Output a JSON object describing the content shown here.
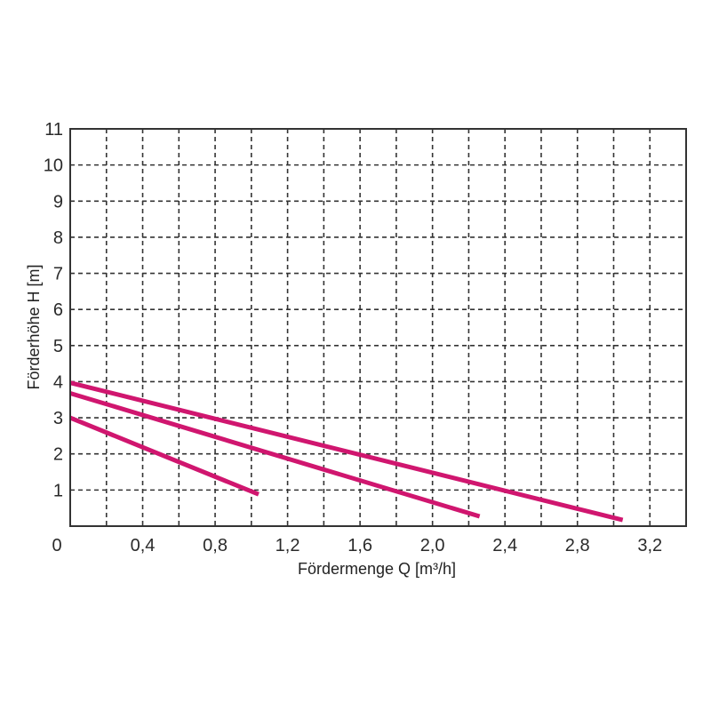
{
  "chart_data": {
    "type": "line",
    "xlabel": "Fördermenge Q [m³/h]",
    "ylabel": "Förderhöhe H [m]",
    "xlim": [
      0,
      3.4
    ],
    "ylim": [
      0,
      11
    ],
    "x_ticks": [
      0,
      0.2,
      0.4,
      0.6,
      0.8,
      1.0,
      1.2,
      1.4,
      1.6,
      1.8,
      2.0,
      2.2,
      2.4,
      2.6,
      2.8,
      3.0,
      3.2,
      3.4
    ],
    "x_tick_labels": [
      {
        "value": 0,
        "label": "0"
      },
      {
        "value": 0.4,
        "label": "0,4"
      },
      {
        "value": 0.8,
        "label": "0,8"
      },
      {
        "value": 1.2,
        "label": "1,2"
      },
      {
        "value": 1.6,
        "label": "1,6"
      },
      {
        "value": 2.0,
        "label": "2,0"
      },
      {
        "value": 2.4,
        "label": "2,4"
      },
      {
        "value": 2.8,
        "label": "2,8"
      },
      {
        "value": 3.2,
        "label": "3,2"
      }
    ],
    "y_tick_labels": [
      {
        "value": 1,
        "label": "1"
      },
      {
        "value": 2,
        "label": "2"
      },
      {
        "value": 3,
        "label": "3"
      },
      {
        "value": 4,
        "label": "4"
      },
      {
        "value": 5,
        "label": "5"
      },
      {
        "value": 6,
        "label": "6"
      },
      {
        "value": 7,
        "label": "7"
      },
      {
        "value": 8,
        "label": "8"
      },
      {
        "value": 9,
        "label": "9"
      },
      {
        "value": 10,
        "label": "10"
      },
      {
        "value": 11,
        "label": "11"
      }
    ],
    "grid": true,
    "series": [
      {
        "x": [
          0,
          3.05
        ],
        "y": [
          3.97,
          0.17
        ],
        "color": "#d0166f"
      },
      {
        "x": [
          0,
          2.26
        ],
        "y": [
          3.68,
          0.27
        ],
        "color": "#d0166f"
      },
      {
        "x": [
          0,
          1.04
        ],
        "y": [
          3.0,
          0.88
        ],
        "color": "#d0166f"
      }
    ]
  }
}
